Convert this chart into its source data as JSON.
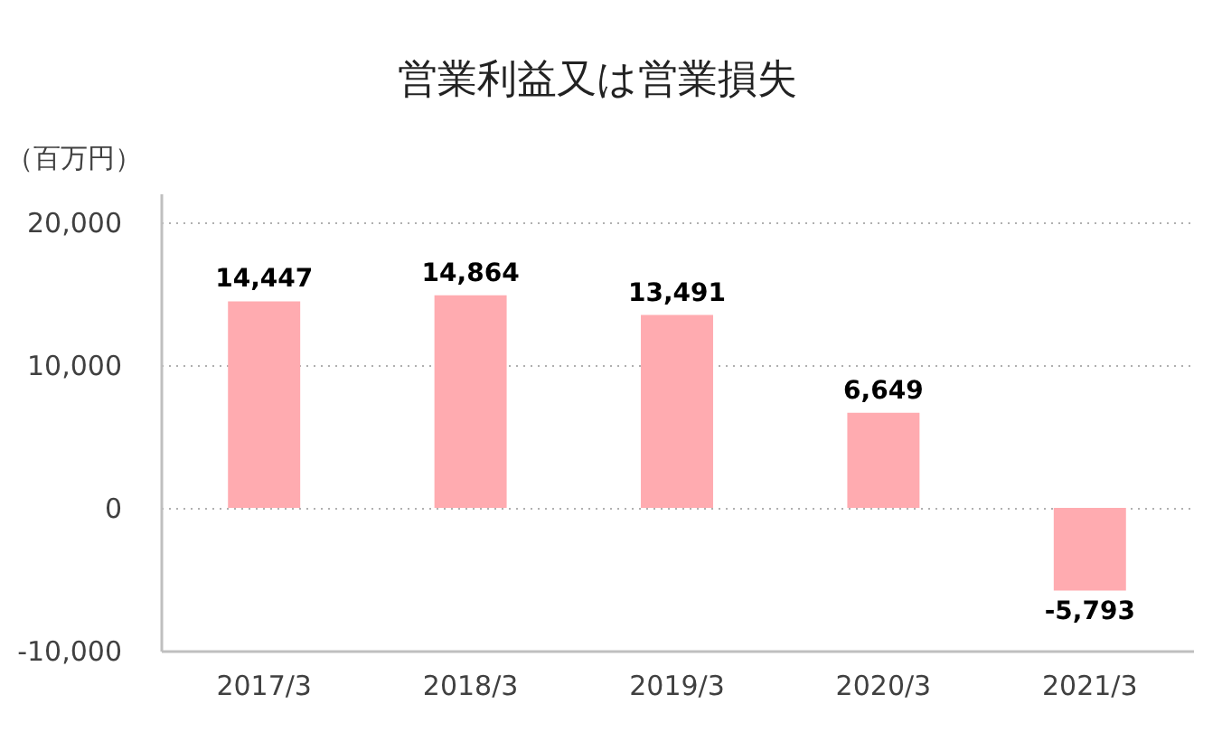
{
  "chart_data": {
    "type": "bar",
    "title": "営業利益又は営業損失",
    "ylabel": "（百万円）",
    "categories": [
      "2017/3",
      "2018/3",
      "2019/3",
      "2020/3",
      "2021/3"
    ],
    "values": [
      14447,
      14864,
      13491,
      6649,
      -5793
    ],
    "value_labels": [
      "14,447",
      "14,864",
      "13,491",
      "6,649",
      "-5,793"
    ],
    "color": "#ffabb0",
    "ylim": [
      -10000,
      22000
    ],
    "yticks": [
      {
        "value": -10000,
        "label": "-10,000"
      },
      {
        "value": 0,
        "label": "0"
      },
      {
        "value": 10000,
        "label": "10,000"
      },
      {
        "value": 20000,
        "label": "20,000"
      }
    ],
    "grid": "y"
  }
}
